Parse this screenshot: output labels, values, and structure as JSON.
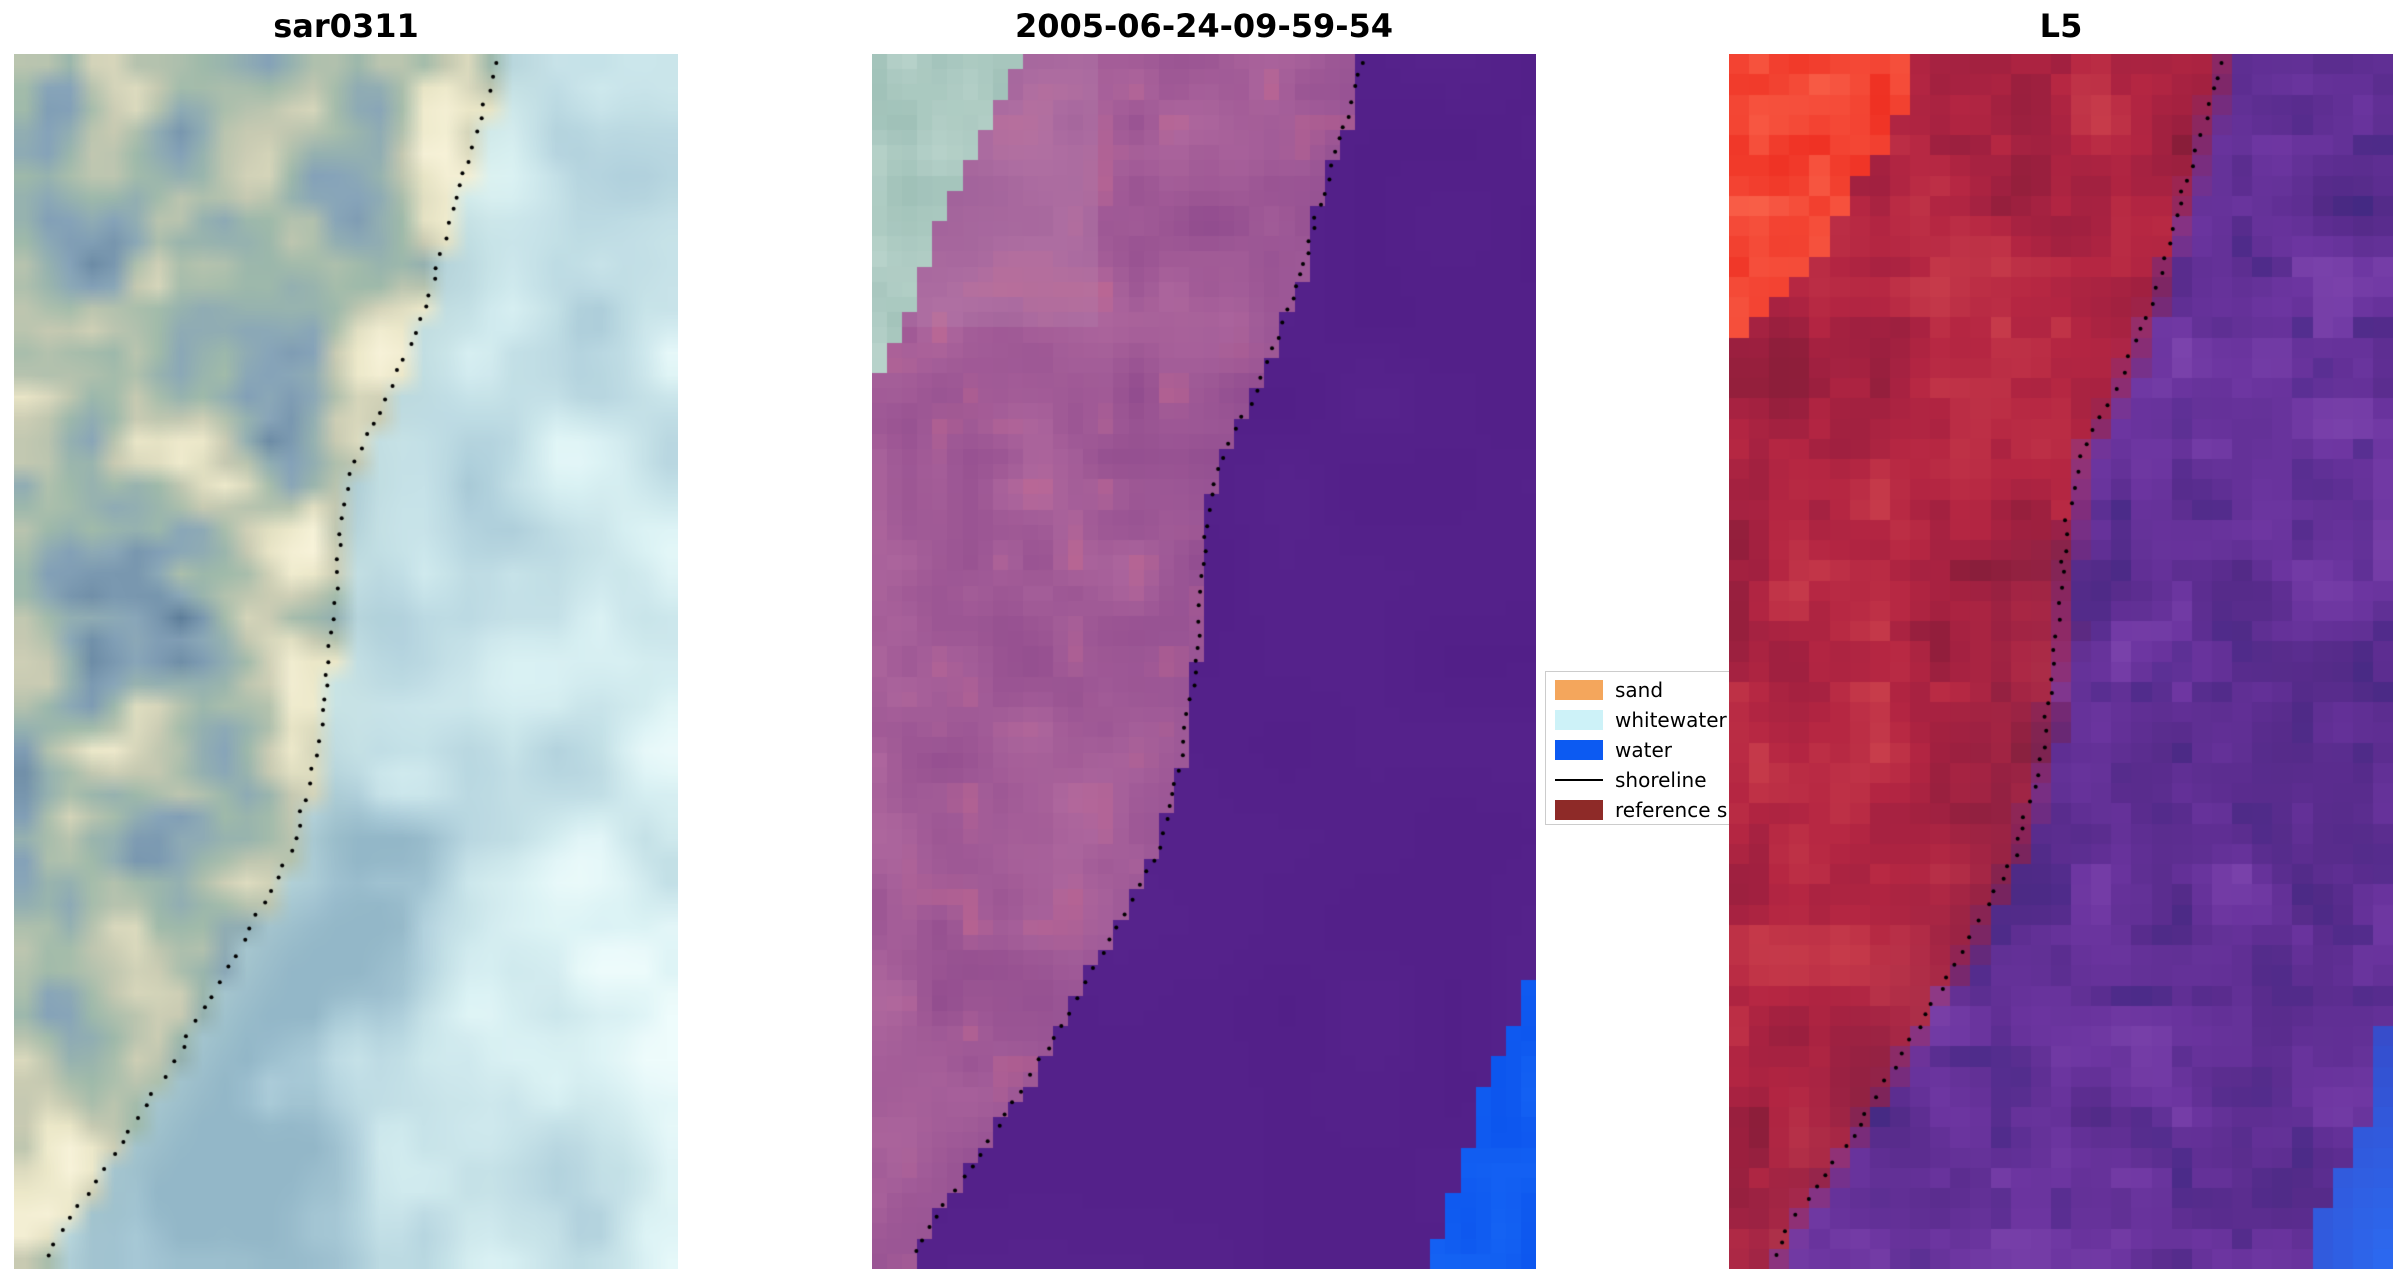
{
  "figure": {
    "background": "#ffffff",
    "panels": [
      {
        "title": "sar0311"
      },
      {
        "title": "2005-06-24-09-59-54"
      },
      {
        "title": "L5"
      }
    ],
    "legend": {
      "items": [
        {
          "label": "sand",
          "color": "#f4a65c",
          "swatch": "patch"
        },
        {
          "label": "whitewater",
          "color": "#cdf2f8",
          "swatch": "patch"
        },
        {
          "label": "water",
          "color": "#0c5af2",
          "swatch": "patch"
        },
        {
          "label": "shoreline",
          "color": "#000000",
          "swatch": "line"
        },
        {
          "label": "reference s",
          "color": "#8e2a28",
          "swatch": "patch"
        }
      ]
    }
  },
  "chart_data": {
    "type": "heatmap",
    "subtype": "coregistered-satellite-image-panels-with-shoreline-overlay",
    "title": "",
    "grid": false,
    "legend_position": "between panel 2 and panel 3, vertically centered",
    "panels": [
      {
        "title": "sar0311",
        "kind": "SAR false-color image (smooth/blurred)",
        "shoreline_offset": 0,
        "colors": {
          "water_light": "#dcf3f5",
          "water_mid": "#b0d0dc",
          "land_cream": "#ebe7c8",
          "land_green": "#9fbaaa",
          "land_blue": "#87a4ba",
          "nearshore_tint": "#cfe7de"
        }
      },
      {
        "title": "2005-06-24-09-59-54",
        "kind": "classified optical image (pixelated)",
        "shoreline_offset": 0.012,
        "colors": {
          "land_mauve_dark": "#8f4a8d",
          "land_mauve_light": "#b76fa2",
          "land_red_tint": "#c2658b",
          "water_purple": "#58258e",
          "whitewater_teal": "#a8c6be",
          "water_blue": "#0c55ee"
        }
      },
      {
        "title": "L5",
        "kind": "Landsat-5 false-color composite (pixelated)",
        "shoreline_offset": 0.015,
        "colors": {
          "land_red": "#b52642",
          "land_dark": "#801c36",
          "bright_red": "#ee2d20",
          "water_purple": "#5c2d90",
          "water_dark": "#3b2a84",
          "water_blue": "#2b6bf2"
        }
      }
    ],
    "shoreline_normalized_points": [
      [
        0.0,
        0.73
      ],
      [
        0.06,
        0.7
      ],
      [
        0.12,
        0.665
      ],
      [
        0.2,
        0.625
      ],
      [
        0.28,
        0.565
      ],
      [
        0.33,
        0.515
      ],
      [
        0.38,
        0.495
      ],
      [
        0.5,
        0.475
      ],
      [
        0.58,
        0.455
      ],
      [
        0.66,
        0.415
      ],
      [
        0.74,
        0.335
      ],
      [
        0.82,
        0.25
      ],
      [
        0.9,
        0.16
      ],
      [
        0.96,
        0.08
      ],
      [
        1.0,
        0.045
      ]
    ]
  }
}
